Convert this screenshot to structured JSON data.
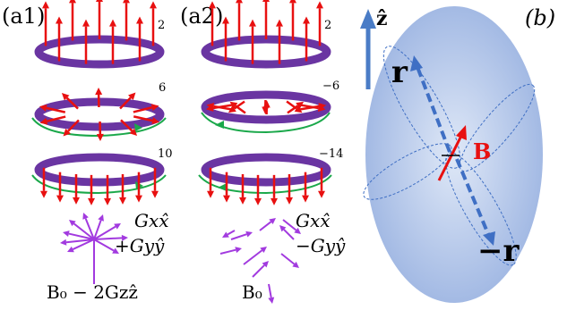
{
  "panels": {
    "a1": {
      "label": "(a1)",
      "ring_labels": [
        "2",
        "6",
        "10"
      ],
      "field_line1": "Gxx̂",
      "field_line2": "+Gyŷ",
      "bias": "B₀ − 2Gzẑ"
    },
    "a2": {
      "label": "(a2)",
      "ring_labels": [
        "2",
        "−6",
        "−14"
      ],
      "field_line1": "Gxx̂",
      "field_line2": "−Gyŷ",
      "bias": "B₀"
    },
    "b": {
      "label": "(b)",
      "z_axis": "ẑ",
      "r_top": "r",
      "r_bottom": "−r",
      "field": "B"
    }
  },
  "colors": {
    "ring": "#6a35a2",
    "ring_dark": "#4a2078",
    "arrow": "#e81010",
    "flow": "#1aa84a",
    "field_arrow": "#a23adf",
    "axis": "#4a7cc6",
    "ellipsoid": "#a9bfe6",
    "dashed": "#3f6fc4",
    "lobe": "#3f6fc4"
  }
}
